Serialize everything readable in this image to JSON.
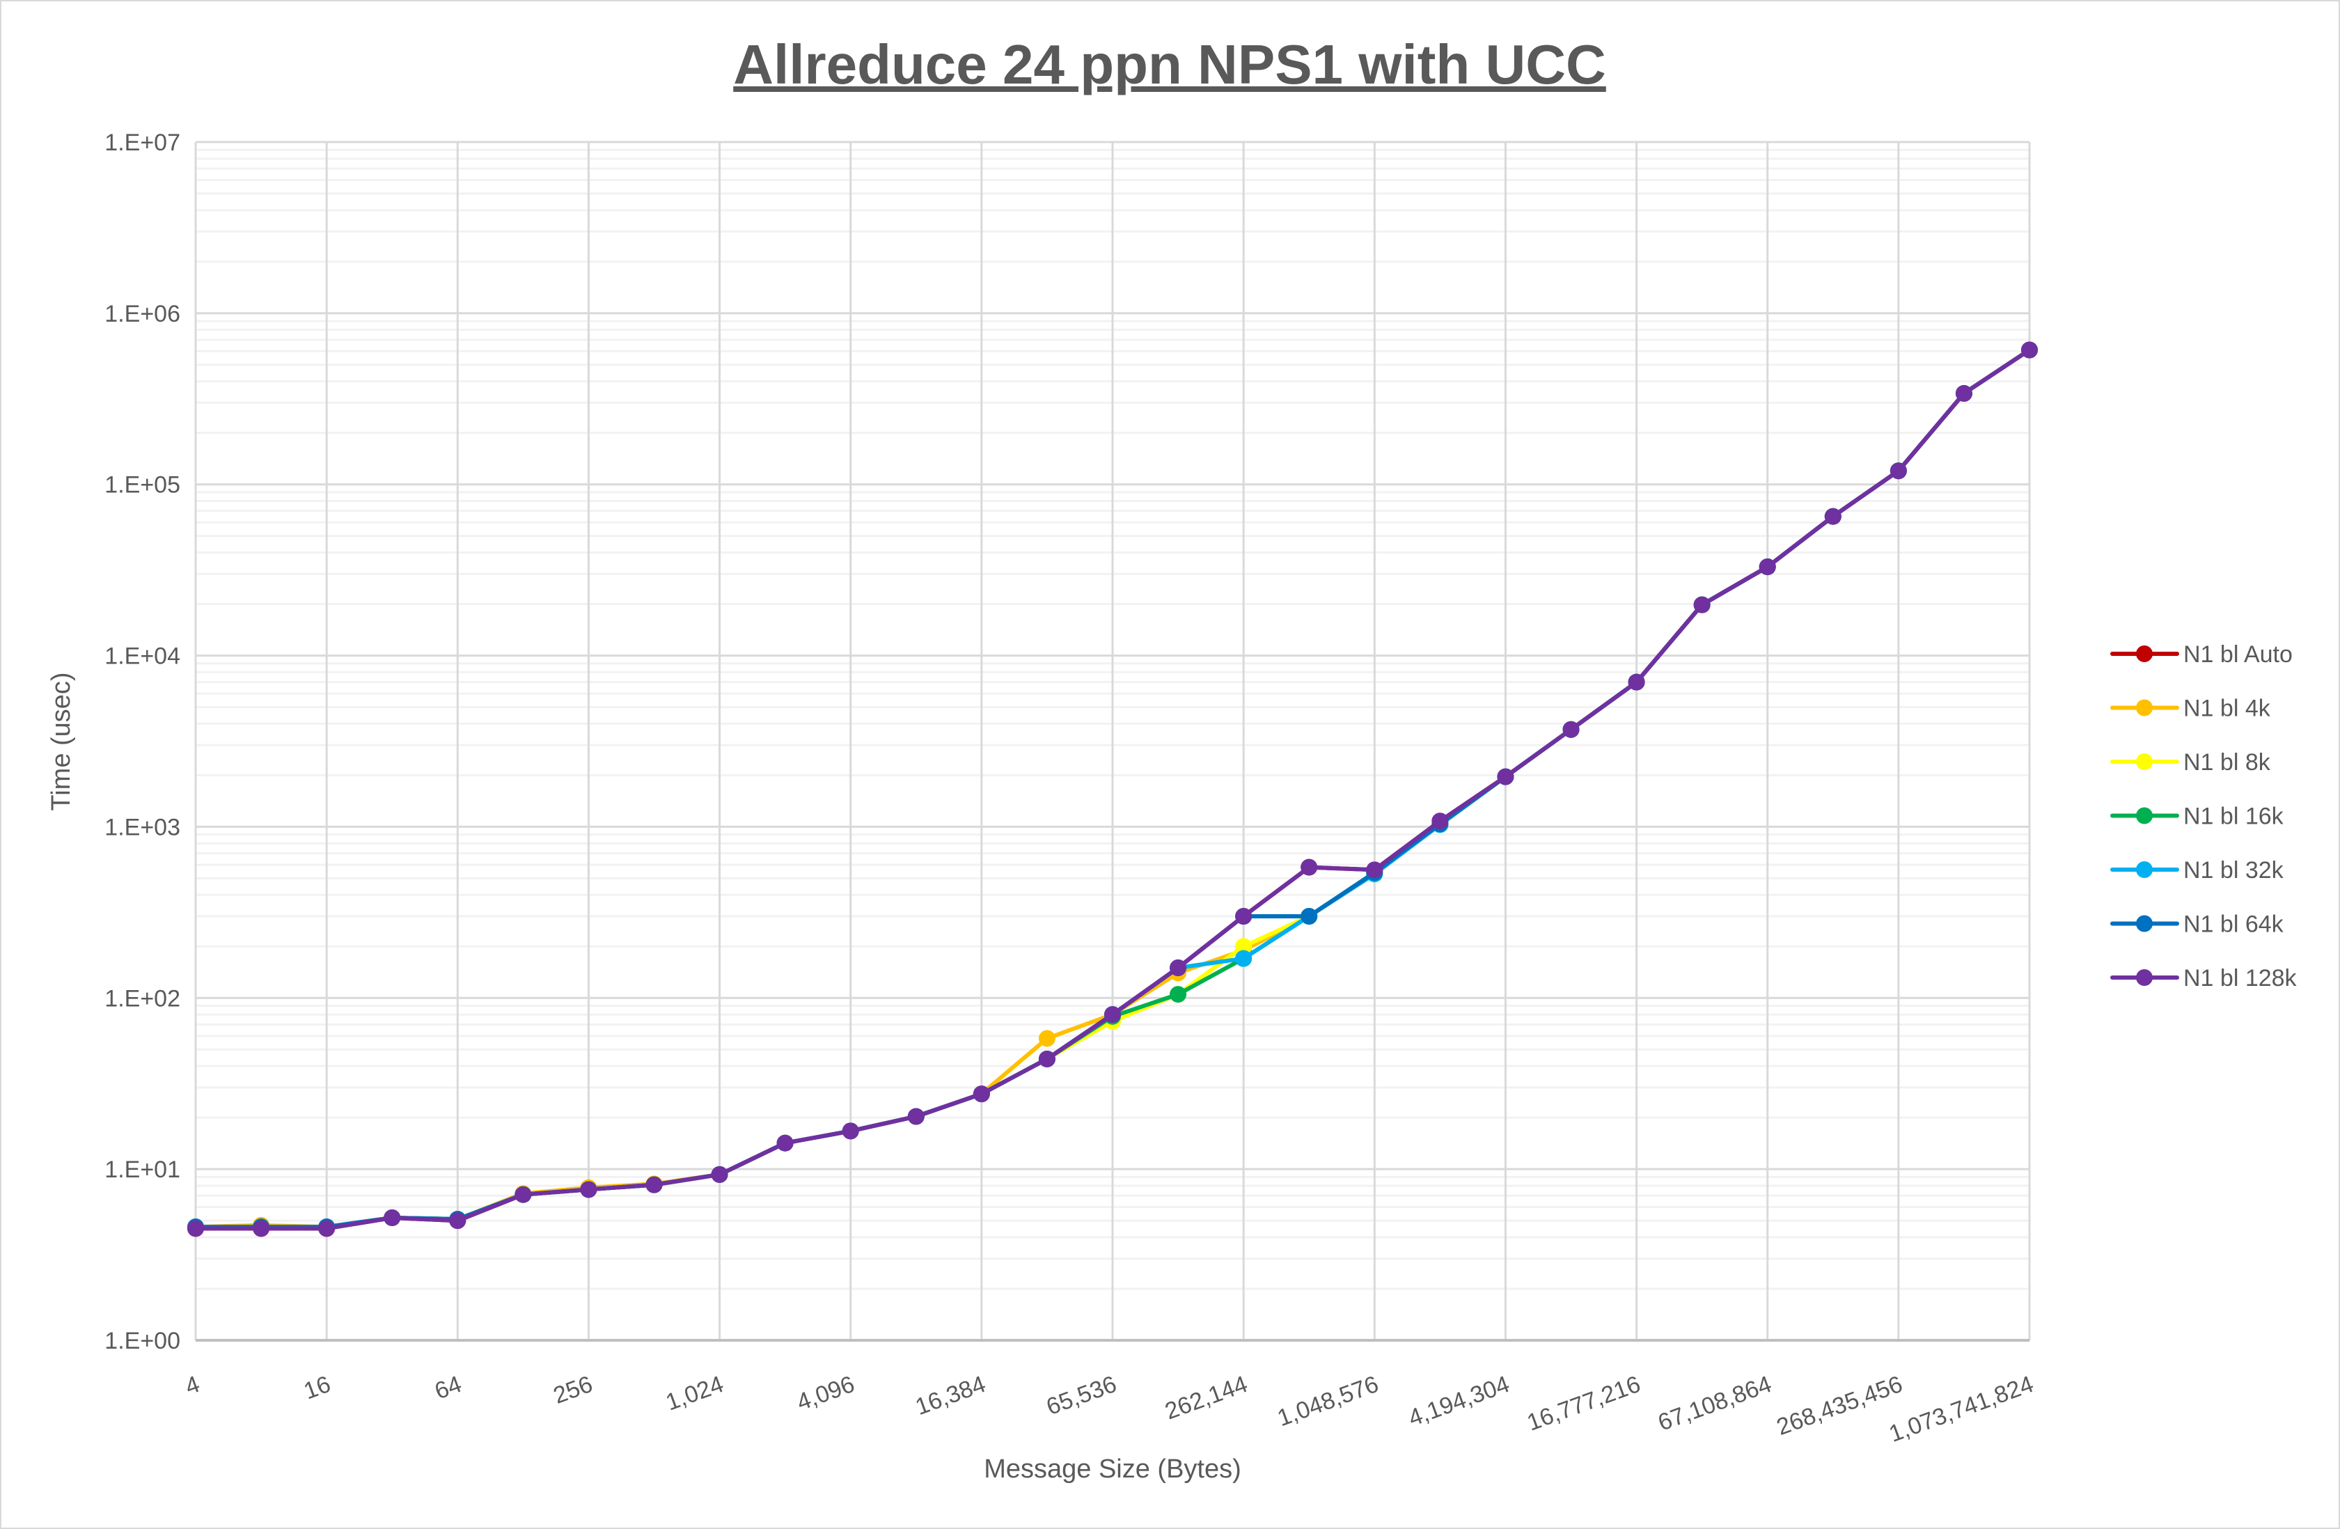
{
  "chart_data": {
    "type": "line",
    "title": "Allreduce 24 ppn NPS1 with UCC",
    "xlabel": "Message Size (Bytes)",
    "ylabel": "Time (usec)",
    "x_scale": "log2",
    "y_scale": "log10",
    "ylim": [
      1,
      10000000
    ],
    "grid": true,
    "legend_position": "right",
    "x": [
      4,
      8,
      16,
      32,
      64,
      128,
      256,
      512,
      1024,
      2048,
      4096,
      8192,
      16384,
      32768,
      65536,
      131072,
      262144,
      524288,
      1048576,
      2097152,
      4194304,
      8388608,
      16777216,
      33554432,
      67108864,
      134217728,
      268435456,
      536870912,
      1073741824
    ],
    "x_tick_labels": [
      "4",
      "16",
      "64",
      "256",
      "1,024",
      "4,096",
      "16,384",
      "65,536",
      "262,144",
      "1,048,576",
      "4,194,304",
      "16,777,216",
      "67,108,864",
      "268,435,456",
      "1,073,741,824"
    ],
    "y_tick_labels": [
      "1.E+00",
      "1.E+01",
      "1.E+02",
      "1.E+03",
      "1.E+04",
      "1.E+05",
      "1.E+06",
      "1.E+07"
    ],
    "series": [
      {
        "name": "N1 bl Auto",
        "color": "#C00000",
        "values": [
          4.5,
          4.5,
          4.5,
          5.2,
          5.0,
          7.1,
          7.6,
          8.1,
          9.3,
          14.2,
          16.7,
          20.3,
          27.5,
          44,
          80,
          150,
          300,
          580,
          560,
          1080,
          1960,
          3700,
          7000,
          19800,
          33000,
          65000,
          120000,
          340000,
          610000
        ]
      },
      {
        "name": "N1 bl 4k",
        "color": "#FFC000",
        "values": [
          4.6,
          4.7,
          4.6,
          5.2,
          5.1,
          7.2,
          7.8,
          8.2,
          9.3,
          14.2,
          16.7,
          20.3,
          27.5,
          58,
          80,
          140,
          190,
          300,
          540,
          1030,
          1960,
          3700,
          7000,
          19800,
          33000,
          65000,
          120000,
          340000,
          610000
        ]
      },
      {
        "name": "N1 bl 8k",
        "color": "#FFFF00",
        "values": [
          4.6,
          4.6,
          4.6,
          5.2,
          5.1,
          7.1,
          7.6,
          8.1,
          9.3,
          14.2,
          16.7,
          20.3,
          27.5,
          44,
          73,
          105,
          200,
          300,
          540,
          1030,
          1960,
          3700,
          7000,
          19800,
          33000,
          65000,
          120000,
          340000,
          610000
        ]
      },
      {
        "name": "N1 bl 16k",
        "color": "#00B050",
        "values": [
          4.6,
          4.6,
          4.6,
          5.2,
          5.1,
          7.1,
          7.6,
          8.1,
          9.3,
          14.2,
          16.7,
          20.3,
          27.5,
          44,
          78,
          105,
          170,
          300,
          540,
          1030,
          1960,
          3700,
          7000,
          19800,
          33000,
          65000,
          120000,
          340000,
          610000
        ]
      },
      {
        "name": "N1 bl 32k",
        "color": "#00B0F0",
        "values": [
          4.6,
          4.6,
          4.6,
          5.2,
          5.1,
          7.1,
          7.6,
          8.1,
          9.3,
          14.2,
          16.7,
          20.3,
          27.5,
          44,
          80,
          150,
          170,
          300,
          530,
          1030,
          1960,
          3700,
          7000,
          19800,
          33000,
          65000,
          120000,
          340000,
          610000
        ]
      },
      {
        "name": "N1 bl 64k",
        "color": "#0070C0",
        "values": [
          4.6,
          4.6,
          4.6,
          5.2,
          5.1,
          7.1,
          7.6,
          8.1,
          9.3,
          14.2,
          16.7,
          20.3,
          27.5,
          44,
          80,
          150,
          300,
          300,
          540,
          1040,
          1960,
          3700,
          7000,
          19800,
          33000,
          65000,
          120000,
          340000,
          610000
        ]
      },
      {
        "name": "N1 bl 128k",
        "color": "#7030A0",
        "values": [
          4.5,
          4.5,
          4.5,
          5.2,
          5.0,
          7.1,
          7.6,
          8.1,
          9.3,
          14.2,
          16.7,
          20.3,
          27.5,
          44,
          80,
          150,
          300,
          580,
          560,
          1080,
          1960,
          3700,
          7000,
          19800,
          33000,
          65000,
          120000,
          340000,
          610000
        ]
      }
    ]
  }
}
